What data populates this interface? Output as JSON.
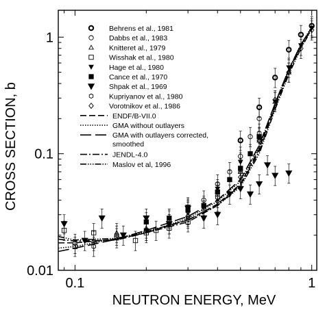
{
  "chart_data": {
    "type": "scatter",
    "title": "",
    "xlabel": "NEUTRON ENERGY, MeV",
    "ylabel": "CROSS SECTION, b",
    "xscale": "log",
    "yscale": "log",
    "xlim": [
      0.085,
      1.05
    ],
    "ylim": [
      0.01,
      1.7
    ],
    "x_ticks": [
      {
        "value": 0.1,
        "label": "0.1"
      },
      {
        "value": 1,
        "label": "1"
      }
    ],
    "y_ticks": [
      {
        "value": 0.01,
        "label": "0.01"
      },
      {
        "value": 0.1,
        "label": "0.1"
      },
      {
        "value": 1,
        "label": "1"
      }
    ],
    "grid": false,
    "legend_position": "top-right",
    "series": [
      {
        "name": "Behrens et al., 1981",
        "kind": "points",
        "marker": "circle-bold",
        "points": [
          [
            0.5,
            0.13
          ],
          [
            0.6,
            0.25
          ],
          [
            0.7,
            0.45
          ],
          [
            0.8,
            0.78
          ],
          [
            0.9,
            1.05
          ],
          [
            1.0,
            1.25
          ]
        ]
      },
      {
        "name": "Dabbs et al., 1983",
        "kind": "points",
        "marker": "circle-open",
        "points": [
          [
            0.25,
            0.025
          ],
          [
            0.3,
            0.032
          ],
          [
            0.35,
            0.04
          ],
          [
            0.4,
            0.055
          ],
          [
            0.45,
            0.07
          ],
          [
            0.5,
            0.095
          ],
          [
            0.55,
            0.14
          ],
          [
            0.6,
            0.2
          ]
        ]
      },
      {
        "name": "Knitteret al., 1979",
        "kind": "points",
        "marker": "triangle-open",
        "points": [
          [
            0.12,
            0.018
          ],
          [
            0.15,
            0.021
          ],
          [
            0.2,
            0.023
          ],
          [
            0.3,
            0.03
          ],
          [
            0.4,
            0.045
          ],
          [
            0.5,
            0.07
          ],
          [
            0.6,
            0.13
          ],
          [
            0.7,
            0.28
          ],
          [
            0.8,
            0.5
          ]
        ]
      },
      {
        "name": "Wisshak et al., 1980",
        "kind": "points",
        "marker": "square-open",
        "points": [
          [
            0.09,
            0.022
          ],
          [
            0.1,
            0.016
          ],
          [
            0.12,
            0.021
          ],
          [
            0.15,
            0.019
          ],
          [
            0.18,
            0.018
          ],
          [
            0.2,
            0.021
          ],
          [
            0.22,
            0.022
          ],
          [
            0.25,
            0.023
          ],
          [
            0.3,
            0.026
          ]
        ]
      },
      {
        "name": "Hage et al., 1980",
        "kind": "points",
        "marker": "triangle-down-filled",
        "points": [
          [
            0.2,
            0.022
          ],
          [
            0.3,
            0.035
          ],
          [
            0.4,
            0.05
          ],
          [
            0.5,
            0.085
          ],
          [
            0.6,
            0.14
          ],
          [
            0.7,
            0.28
          ],
          [
            0.8,
            0.55
          ],
          [
            0.9,
            0.85
          ],
          [
            1.0,
            1.2
          ]
        ]
      },
      {
        "name": "Cance et al., 1970",
        "kind": "points",
        "marker": "square-filled",
        "points": [
          [
            0.2,
            0.026
          ],
          [
            0.25,
            0.028
          ],
          [
            0.3,
            0.033
          ],
          [
            0.35,
            0.036
          ],
          [
            0.4,
            0.047
          ],
          [
            0.45,
            0.06
          ],
          [
            0.5,
            0.075
          ],
          [
            0.55,
            0.1
          ],
          [
            0.6,
            0.14
          ]
        ]
      },
      {
        "name": "Shpak et al., 1969",
        "kind": "points",
        "marker": "triangle-down-bold",
        "points": [
          [
            0.09,
            0.025
          ],
          [
            0.11,
            0.018
          ],
          [
            0.13,
            0.028
          ],
          [
            0.16,
            0.02
          ],
          [
            0.2,
            0.028
          ],
          [
            0.25,
            0.025
          ],
          [
            0.3,
            0.034
          ],
          [
            0.35,
            0.028
          ],
          [
            0.4,
            0.03
          ],
          [
            0.45,
            0.045
          ],
          [
            0.5,
            0.05
          ],
          [
            0.55,
            0.045
          ],
          [
            0.6,
            0.055
          ],
          [
            0.65,
            0.08
          ],
          [
            0.7,
            0.065
          ],
          [
            0.8,
            0.068
          ]
        ]
      },
      {
        "name": "Kupriyanov et al., 1980",
        "kind": "points",
        "marker": "hexagon-open",
        "points": [
          [
            0.1,
            0.017
          ],
          [
            0.12,
            0.016
          ],
          [
            0.15,
            0.02
          ],
          [
            0.2,
            0.022
          ],
          [
            0.25,
            0.027
          ],
          [
            0.3,
            0.028
          ],
          [
            0.35,
            0.033
          ],
          [
            0.4,
            0.042
          ],
          [
            0.5,
            0.07
          ],
          [
            0.6,
            0.15
          ]
        ]
      },
      {
        "name": "Vorotnikov et al., 1986",
        "kind": "points",
        "marker": "diamond-open",
        "points": [
          [
            0.3,
            0.029
          ],
          [
            0.4,
            0.039
          ],
          [
            0.5,
            0.063
          ],
          [
            0.6,
            0.13
          ],
          [
            0.7,
            0.29
          ],
          [
            0.8,
            0.5
          ],
          [
            0.9,
            0.8
          ],
          [
            1.0,
            1.15
          ]
        ]
      },
      {
        "name": "ENDF/B-VII.0",
        "kind": "line",
        "dash": "9 4",
        "points": [
          [
            0.085,
            0.0172
          ],
          [
            0.1,
            0.0172
          ],
          [
            0.15,
            0.0185
          ],
          [
            0.2,
            0.021
          ],
          [
            0.3,
            0.027
          ],
          [
            0.4,
            0.037
          ],
          [
            0.5,
            0.055
          ],
          [
            0.6,
            0.11
          ],
          [
            0.7,
            0.26
          ],
          [
            0.8,
            0.52
          ],
          [
            0.9,
            0.85
          ],
          [
            1.0,
            1.2
          ]
        ]
      },
      {
        "name": "GMA without outlayers",
        "kind": "line",
        "dash": "1.5 2",
        "points": [
          [
            0.085,
            0.0155
          ],
          [
            0.1,
            0.016
          ],
          [
            0.15,
            0.0188
          ],
          [
            0.2,
            0.021
          ],
          [
            0.3,
            0.028
          ],
          [
            0.4,
            0.039
          ],
          [
            0.5,
            0.058
          ],
          [
            0.6,
            0.115
          ],
          [
            0.7,
            0.27
          ],
          [
            0.8,
            0.53
          ],
          [
            0.9,
            0.87
          ],
          [
            1.0,
            1.22
          ]
        ]
      },
      {
        "name": "GMA with outlayers corrected, smoothed",
        "kind": "line",
        "dash": "16 6",
        "points": [
          [
            0.085,
            0.0145
          ],
          [
            0.1,
            0.0155
          ],
          [
            0.15,
            0.0185
          ],
          [
            0.2,
            0.022
          ],
          [
            0.3,
            0.029
          ],
          [
            0.4,
            0.04
          ],
          [
            0.5,
            0.06
          ],
          [
            0.6,
            0.118
          ],
          [
            0.7,
            0.27
          ],
          [
            0.8,
            0.53
          ],
          [
            0.9,
            0.86
          ],
          [
            1.0,
            1.21
          ]
        ]
      },
      {
        "name": "JENDL-4.0",
        "kind": "line",
        "dash": "10 3 2 3",
        "points": [
          [
            0.085,
            0.0185
          ],
          [
            0.1,
            0.0178
          ],
          [
            0.15,
            0.0182
          ],
          [
            0.2,
            0.021
          ],
          [
            0.3,
            0.026
          ],
          [
            0.4,
            0.036
          ],
          [
            0.5,
            0.054
          ],
          [
            0.6,
            0.105
          ],
          [
            0.7,
            0.25
          ],
          [
            0.8,
            0.5
          ],
          [
            0.9,
            0.83
          ],
          [
            1.0,
            1.18
          ]
        ]
      },
      {
        "name": "Maslov et al, 1996",
        "kind": "line",
        "dash": "9 2 1.5 2 1.5 2 1.5 2",
        "points": [
          [
            0.085,
            0.0195
          ],
          [
            0.1,
            0.0182
          ],
          [
            0.15,
            0.0188
          ],
          [
            0.2,
            0.0215
          ],
          [
            0.3,
            0.027
          ],
          [
            0.4,
            0.036
          ],
          [
            0.5,
            0.052
          ],
          [
            0.6,
            0.1
          ],
          [
            0.7,
            0.24
          ],
          [
            0.8,
            0.48
          ],
          [
            0.9,
            0.8
          ],
          [
            1.0,
            1.17
          ]
        ]
      }
    ]
  }
}
